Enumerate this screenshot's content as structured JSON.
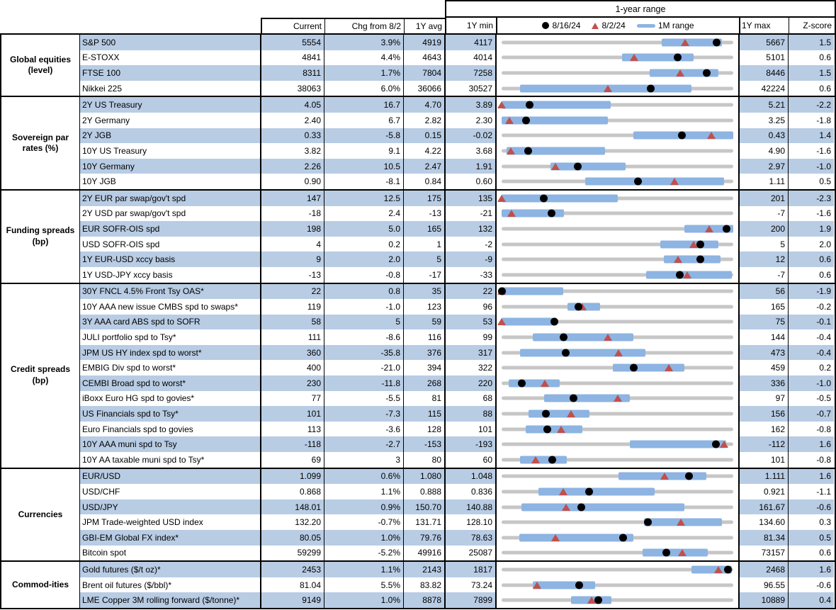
{
  "colors": {
    "stripe": "#b8cce4",
    "bar": "#8db4e2",
    "triangle": "#c0504d",
    "dot": "#000000",
    "track": "#c6c6c6",
    "border": "#000000"
  },
  "chart_data": {
    "type": "table",
    "title": "1-year range",
    "columns": [
      "Current",
      "Chg from 8/2",
      "1Y avg",
      "1Y min",
      "1Y max",
      "Z-score"
    ],
    "legend": [
      {
        "marker": "dot",
        "label": "8/16/24"
      },
      {
        "marker": "triangle",
        "label": "8/2/24"
      },
      {
        "marker": "bar",
        "label": "1M range"
      }
    ],
    "sections": [
      {
        "name": "Global equities (level)",
        "label_lines": [
          "Global equities",
          "(level)"
        ],
        "rows": [
          {
            "label": "S&P 500",
            "current": "5554",
            "chg": "3.9%",
            "avg": "4919",
            "min": "4117",
            "max": "5667",
            "z": "1.5",
            "cur_n": 5554,
            "prev_n": 5345.5,
            "min_n": 4117,
            "max_n": 5667,
            "bar": [
              0.69,
              0.95
            ]
          },
          {
            "label": "E-STOXX",
            "current": "4841",
            "chg": "4.4%",
            "avg": "4643",
            "min": "4014",
            "max": "5101",
            "z": "0.6",
            "cur_n": 4841,
            "prev_n": 4637,
            "min_n": 4014,
            "max_n": 5101,
            "bar": [
              0.52,
              0.83
            ]
          },
          {
            "label": "FTSE 100",
            "current": "8311",
            "chg": "1.7%",
            "avg": "7804",
            "min": "7258",
            "max": "8446",
            "z": "1.5",
            "cur_n": 8311,
            "prev_n": 8172,
            "min_n": 7258,
            "max_n": 8446,
            "bar": [
              0.64,
              0.935
            ]
          },
          {
            "label": "Nikkei 225",
            "current": "38063",
            "chg": "6.0%",
            "avg": "36066",
            "min": "30527",
            "max": "42224",
            "z": "0.6",
            "cur_n": 38063,
            "prev_n": 35908,
            "min_n": 30527,
            "max_n": 42224,
            "bar": [
              0.08,
              0.82
            ]
          }
        ]
      },
      {
        "name": "Sovereign par rates (%)",
        "label_lines": [
          "Sovereign par",
          "rates (%)"
        ],
        "rows": [
          {
            "label": "2Y US Treasury",
            "current": "4.05",
            "chg": "16.7",
            "avg": "4.70",
            "min": "3.89",
            "max": "5.21",
            "z": "-2.2",
            "cur_n": 4.05,
            "prev_n": 3.883,
            "min_n": 3.89,
            "max_n": 5.21,
            "bar": [
              0,
              0.47
            ]
          },
          {
            "label": "2Y Germany",
            "current": "2.40",
            "chg": "6.7",
            "avg": "2.82",
            "min": "2.30",
            "max": "3.25",
            "z": "-1.8",
            "cur_n": 2.4,
            "prev_n": 2.333,
            "min_n": 2.3,
            "max_n": 3.25,
            "bar": [
              0,
              0.46
            ]
          },
          {
            "label": "2Y JGB",
            "current": "0.33",
            "chg": "-5.8",
            "avg": "0.15",
            "min": "-0.02",
            "max": "0.43",
            "z": "1.4",
            "cur_n": 0.33,
            "prev_n": 0.388,
            "min_n": -0.02,
            "max_n": 0.43,
            "bar": [
              0.57,
              1
            ]
          },
          {
            "label": "10Y US Treasury",
            "current": "3.82",
            "chg": "9.1",
            "avg": "4.22",
            "min": "3.68",
            "max": "4.90",
            "z": "-1.6",
            "cur_n": 3.82,
            "prev_n": 3.729,
            "min_n": 3.68,
            "max_n": 4.9,
            "bar": [
              0.02,
              0.445
            ]
          },
          {
            "label": "10Y Germany",
            "current": "2.26",
            "chg": "10.5",
            "avg": "2.47",
            "min": "1.91",
            "max": "2.97",
            "z": "-1.0",
            "cur_n": 2.26,
            "prev_n": 2.155,
            "min_n": 1.91,
            "max_n": 2.97,
            "bar": [
              0.21,
              0.535
            ]
          },
          {
            "label": "10Y JGB",
            "current": "0.90",
            "chg": "-8.1",
            "avg": "0.84",
            "min": "0.60",
            "max": "1.11",
            "z": "0.5",
            "cur_n": 0.9,
            "prev_n": 0.981,
            "min_n": 0.6,
            "max_n": 1.11,
            "bar": [
              0.36,
              0.96
            ]
          }
        ]
      },
      {
        "name": "Funding spreads (bp)",
        "label_lines": [
          "Funding spreads",
          "(bp)"
        ],
        "rows": [
          {
            "label": "2Y EUR par swap/gov't spd",
            "current": "147",
            "chg": "12.5",
            "avg": "175",
            "min": "135",
            "max": "201",
            "z": "-2.3",
            "cur_n": 147,
            "prev_n": 134.5,
            "min_n": 135,
            "max_n": 201,
            "bar": [
              0,
              0.5
            ]
          },
          {
            "label": "2Y USD par swap/gov't spd",
            "current": "-18",
            "chg": "2.4",
            "avg": "-13",
            "min": "-21",
            "max": "-7",
            "z": "-1.6",
            "cur_n": -18,
            "prev_n": -20.4,
            "min_n": -21,
            "max_n": -7,
            "bar": [
              0,
              0.27
            ]
          },
          {
            "label": "EUR SOFR-OIS spd",
            "current": "198",
            "chg": "5.0",
            "avg": "165",
            "min": "132",
            "max": "200",
            "z": "1.9",
            "cur_n": 198,
            "prev_n": 193,
            "min_n": 132,
            "max_n": 200,
            "bar": [
              0.79,
              1
            ]
          },
          {
            "label": "USD SOFR-OIS spd",
            "current": "4",
            "chg": "0.2",
            "avg": "1",
            "min": "-2",
            "max": "5",
            "z": "2.0",
            "cur_n": 4,
            "prev_n": 3.8,
            "min_n": -2,
            "max_n": 5,
            "bar": [
              0.685,
              0.935
            ]
          },
          {
            "label": "1Y EUR-USD xccy basis",
            "current": "9",
            "chg": "2.0",
            "avg": "5",
            "min": "-9",
            "max": "12",
            "z": "0.6",
            "cur_n": 9,
            "prev_n": 7,
            "min_n": -9,
            "max_n": 12,
            "bar": [
              0.7,
              0.945
            ]
          },
          {
            "label": "1Y USD-JPY xccy basis",
            "current": "-13",
            "chg": "-0.8",
            "avg": "-17",
            "min": "-33",
            "max": "-7",
            "z": "0.6",
            "cur_n": -13,
            "prev_n": -12.2,
            "min_n": -33,
            "max_n": -7,
            "bar": [
              0.625,
              0.995
            ]
          }
        ]
      },
      {
        "name": "Credit spreads (bp)",
        "label_lines": [
          "Credit spreads",
          "(bp)"
        ],
        "rows": [
          {
            "label": "30Y FNCL 4.5% Front Tsy OAS*",
            "current": "22",
            "chg": "0.8",
            "avg": "35",
            "min": "22",
            "max": "56",
            "z": "-1.9",
            "cur_n": 22,
            "prev_n": 21.2,
            "min_n": 22,
            "max_n": 56,
            "bar": [
              0,
              0.265
            ]
          },
          {
            "label": "10Y AAA new issue CMBS spd to swaps*",
            "current": "119",
            "chg": "-1.0",
            "avg": "123",
            "min": "96",
            "max": "165",
            "z": "-0.2",
            "cur_n": 119,
            "prev_n": 120,
            "min_n": 96,
            "max_n": 165,
            "bar": [
              0.285,
              0.425
            ]
          },
          {
            "label": "3Y AAA card ABS spd to SOFR",
            "current": "58",
            "chg": "5",
            "avg": "59",
            "min": "53",
            "max": "75",
            "z": "-0.1",
            "cur_n": 58,
            "prev_n": 53,
            "min_n": 53,
            "max_n": 75,
            "bar": [
              0,
              0.225
            ]
          },
          {
            "label": "JULI portfolio spd to Tsy*",
            "current": "111",
            "chg": "-8.6",
            "avg": "116",
            "min": "99",
            "max": "144",
            "z": "-0.4",
            "cur_n": 111,
            "prev_n": 119.6,
            "min_n": 99,
            "max_n": 144,
            "bar": [
              0.135,
              0.57
            ]
          },
          {
            "label": "JPM US HY index spd to worst*",
            "current": "360",
            "chg": "-35.8",
            "avg": "376",
            "min": "317",
            "max": "473",
            "z": "-0.4",
            "cur_n": 360,
            "prev_n": 395.8,
            "min_n": 317,
            "max_n": 473,
            "bar": [
              0.08,
              0.62
            ]
          },
          {
            "label": "EMBIG Div spd to worst*",
            "current": "400",
            "chg": "-21.0",
            "avg": "394",
            "min": "322",
            "max": "459",
            "z": "0.2",
            "cur_n": 400,
            "prev_n": 421,
            "min_n": 322,
            "max_n": 459,
            "bar": [
              0.48,
              0.79
            ]
          },
          {
            "label": "CEMBI Broad spd to worst*",
            "current": "230",
            "chg": "-11.8",
            "avg": "268",
            "min": "220",
            "max": "336",
            "z": "-1.0",
            "cur_n": 230,
            "prev_n": 241.8,
            "min_n": 220,
            "max_n": 336,
            "bar": [
              0.03,
              0.25
            ]
          },
          {
            "label": "iBoxx Euro HG spd to govies*",
            "current": "77",
            "chg": "-5.5",
            "avg": "81",
            "min": "68",
            "max": "97",
            "z": "-0.5",
            "cur_n": 77,
            "prev_n": 82.5,
            "min_n": 68,
            "max_n": 97,
            "bar": [
              0.185,
              0.555
            ]
          },
          {
            "label": "US Financials spd to Tsy*",
            "current": "101",
            "chg": "-7.3",
            "avg": "115",
            "min": "88",
            "max": "156",
            "z": "-0.7",
            "cur_n": 101,
            "prev_n": 108.3,
            "min_n": 88,
            "max_n": 156,
            "bar": [
              0.115,
              0.38
            ]
          },
          {
            "label": "Euro Financials spd to govies",
            "current": "113",
            "chg": "-3.6",
            "avg": "128",
            "min": "101",
            "max": "162",
            "z": "-0.8",
            "cur_n": 113,
            "prev_n": 116.6,
            "min_n": 101,
            "max_n": 162,
            "bar": [
              0.105,
              0.35
            ]
          },
          {
            "label": "10Y AAA muni spd to Tsy",
            "current": "-118",
            "chg": "-2.7",
            "avg": "-153",
            "min": "-193",
            "max": "-112",
            "z": "1.6",
            "cur_n": -118,
            "prev_n": -115.3,
            "min_n": -193,
            "max_n": -112,
            "bar": [
              0.555,
              0.97
            ]
          },
          {
            "label": "10Y AA taxable muni spd to Tsy*",
            "current": "69",
            "chg": "3",
            "avg": "80",
            "min": "60",
            "max": "101",
            "z": "-0.8",
            "cur_n": 69,
            "prev_n": 66,
            "min_n": 60,
            "max_n": 101,
            "bar": [
              0.08,
              0.28
            ]
          }
        ]
      },
      {
        "name": "Currencies",
        "label_lines": [
          "Currencies"
        ],
        "rows": [
          {
            "label": "EUR/USD",
            "current": "1.099",
            "chg": "0.6%",
            "avg": "1.080",
            "min": "1.048",
            "max": "1.111",
            "z": "1.6",
            "cur_n": 1.099,
            "prev_n": 1.0924,
            "min_n": 1.048,
            "max_n": 1.111,
            "bar": [
              0.505,
              0.885
            ]
          },
          {
            "label": "USD/CHF",
            "current": "0.868",
            "chg": "1.1%",
            "avg": "0.888",
            "min": "0.836",
            "max": "0.921",
            "z": "-1.1",
            "cur_n": 0.868,
            "prev_n": 0.8586,
            "min_n": 0.836,
            "max_n": 0.921,
            "bar": [
              0.16,
              0.66
            ]
          },
          {
            "label": "USD/JPY",
            "current": "148.01",
            "chg": "0.9%",
            "avg": "150.70",
            "min": "140.88",
            "max": "161.67",
            "z": "-0.6",
            "cur_n": 148.01,
            "prev_n": 146.69,
            "min_n": 140.88,
            "max_n": 161.67,
            "bar": [
              0.085,
              0.79
            ]
          },
          {
            "label": "JPM Trade-weighted USD index",
            "current": "132.20",
            "chg": "-0.7%",
            "avg": "131.71",
            "min": "128.10",
            "max": "134.60",
            "z": "0.3",
            "cur_n": 132.2,
            "prev_n": 133.13,
            "min_n": 128.1,
            "max_n": 134.6,
            "bar": [
              0.615,
              0.95
            ]
          },
          {
            "label": "GBI-EM Global FX index*",
            "current": "80.05",
            "chg": "1.0%",
            "avg": "79.76",
            "min": "78.63",
            "max": "81.34",
            "z": "0.5",
            "cur_n": 80.05,
            "prev_n": 79.26,
            "min_n": 78.63,
            "max_n": 81.34,
            "bar": [
              0.075,
              0.57
            ]
          },
          {
            "label": "Bitcoin spot",
            "current": "59299",
            "chg": "-5.2%",
            "avg": "49916",
            "min": "25087",
            "max": "73157",
            "z": "0.6",
            "cur_n": 59299,
            "prev_n": 62551,
            "min_n": 25087,
            "max_n": 73157,
            "bar": [
              0.61,
              0.89
            ]
          }
        ]
      },
      {
        "name": "Commod-ities",
        "label_lines": [
          "Commod-ities"
        ],
        "rows": [
          {
            "label": "Gold futures ($/t oz)*",
            "current": "2453",
            "chg": "1.1%",
            "avg": "2143",
            "min": "1817",
            "max": "2468",
            "z": "1.6",
            "cur_n": 2453,
            "prev_n": 2426,
            "min_n": 1817,
            "max_n": 2468,
            "bar": [
              0.82,
              0.995
            ]
          },
          {
            "label": "Brent oil futures ($/bbl)*",
            "current": "81.04",
            "chg": "5.5%",
            "avg": "83.82",
            "min": "73.24",
            "max": "96.55",
            "z": "-0.6",
            "cur_n": 81.04,
            "prev_n": 76.82,
            "min_n": 73.24,
            "max_n": 96.55,
            "bar": [
              0.135,
              0.405
            ]
          },
          {
            "label": "LME Copper 3M rolling forward ($/tonne)*",
            "current": "9149",
            "chg": "1.0%",
            "avg": "8878",
            "min": "7899",
            "max": "10889",
            "z": "0.4",
            "cur_n": 9149,
            "prev_n": 9058,
            "min_n": 7899,
            "max_n": 10889,
            "bar": [
              0.3,
              0.475
            ]
          }
        ]
      }
    ]
  }
}
